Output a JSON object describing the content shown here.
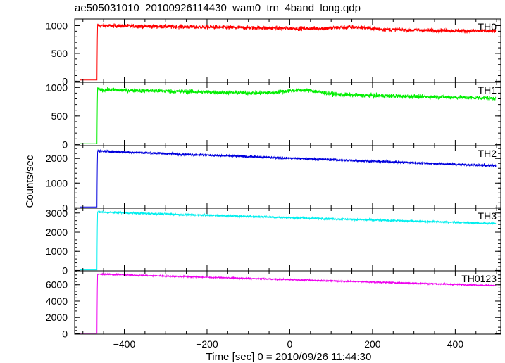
{
  "title": "ae505031010_20100926114430_wam0_trn_4band_long.qdp",
  "chart_data": {
    "type": "line",
    "xlabel": "Time [sec] 0 = 2010/09/26 11:44:30",
    "ylabel": "Counts/sec",
    "xlim": [
      -520,
      510
    ],
    "x_ticks": [
      -400,
      -200,
      0,
      200,
      400
    ],
    "grid": false,
    "legend": "none",
    "trigger_time": -466,
    "x_start": -508,
    "x_end": 498,
    "panels": [
      {
        "name": "TH0",
        "color": "#ff0000",
        "ylim": [
          -20,
          1120
        ],
        "y_ticks": [
          0,
          500,
          1000
        ],
        "pre_level": 20,
        "ramp_level": 360,
        "start_level": 1000,
        "end_level": 900,
        "noise": 35,
        "bump": {
          "x": 150,
          "amp": 35,
          "width": 60
        }
      },
      {
        "name": "TH1",
        "color": "#00ee00",
        "ylim": [
          -20,
          1090
        ],
        "y_ticks": [
          0,
          500,
          1000
        ],
        "pre_level": 15,
        "ramp_level": 350,
        "start_level": 960,
        "end_level": 810,
        "noise": 35,
        "bump": {
          "x": 30,
          "amp": 70,
          "width": 60
        }
      },
      {
        "name": "TH2",
        "color": "#0000dd",
        "ylim": [
          -20,
          2520
        ],
        "y_ticks": [
          0,
          1000,
          2000
        ],
        "pre_level": 30,
        "ramp_level": 900,
        "start_level": 2300,
        "end_level": 1700,
        "noise": 45,
        "bump": {
          "x": -180,
          "amp": 0,
          "width": 60
        }
      },
      {
        "name": "TH3",
        "color": "#00eeee",
        "ylim": [
          -20,
          3250
        ],
        "y_ticks": [
          0,
          1000,
          2000,
          3000
        ],
        "pre_level": 30,
        "ramp_level": 1200,
        "start_level": 3050,
        "end_level": 2450,
        "noise": 50,
        "bump": {
          "x": 0,
          "amp": 0,
          "width": 60
        }
      },
      {
        "name": "TH0123",
        "color": "#ee00ee",
        "ylim": [
          -50,
          7700
        ],
        "y_ticks": [
          0,
          2000,
          4000,
          6000
        ],
        "pre_level": 60,
        "ramp_level": 2800,
        "start_level": 7300,
        "end_level": 5900,
        "noise": 80,
        "bump": {
          "x": 0,
          "amp": 0,
          "width": 60
        }
      }
    ]
  }
}
